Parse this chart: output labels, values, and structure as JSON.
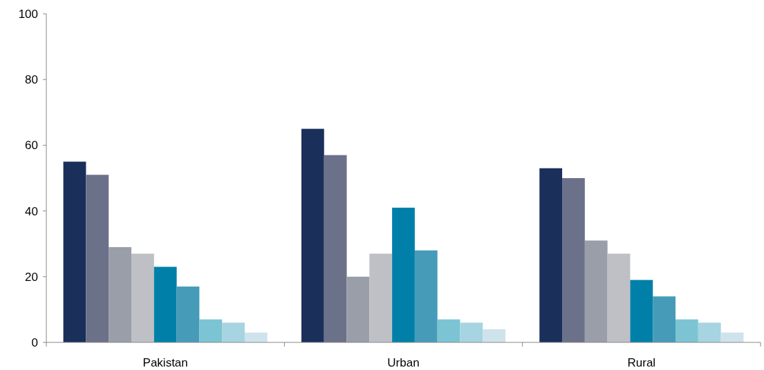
{
  "chart_data": {
    "type": "bar",
    "categories": [
      "Pakistan",
      "Urban",
      "Rural"
    ],
    "series": [
      {
        "color": "#1a2f5a",
        "values": [
          55,
          65,
          53
        ]
      },
      {
        "color": "#6b7189",
        "values": [
          51,
          57,
          50
        ]
      },
      {
        "color": "#9a9ea8",
        "values": [
          29,
          20,
          31
        ]
      },
      {
        "color": "#bfc0c6",
        "values": [
          27,
          27,
          27
        ]
      },
      {
        "color": "#0080a8",
        "values": [
          23,
          41,
          19
        ]
      },
      {
        "color": "#469cb8",
        "values": [
          17,
          28,
          14
        ]
      },
      {
        "color": "#7cc4d4",
        "values": [
          7,
          7,
          7
        ]
      },
      {
        "color": "#a6d4e0",
        "values": [
          6,
          6,
          6
        ]
      },
      {
        "color": "#cfe3ec",
        "values": [
          3,
          4,
          3
        ]
      }
    ],
    "ylim": [
      0,
      100
    ],
    "yticks": [
      0,
      20,
      40,
      60,
      80,
      100
    ],
    "grid": false
  }
}
